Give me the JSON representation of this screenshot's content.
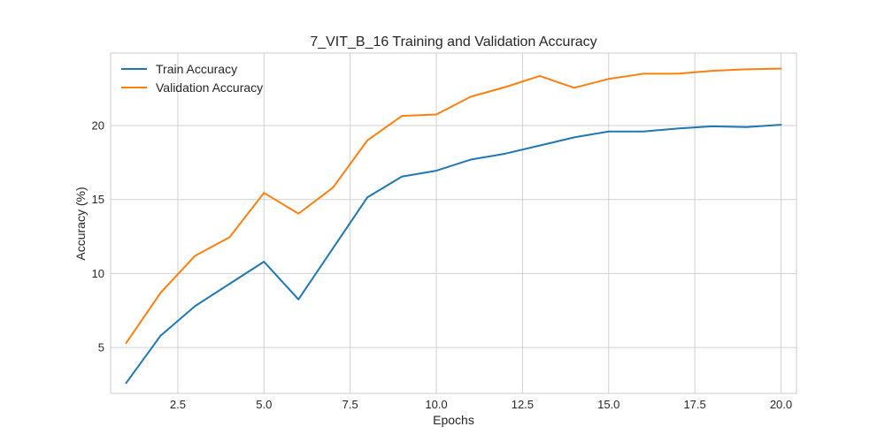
{
  "chart_data": {
    "type": "line",
    "title": "7_VIT_B_16 Training and Validation Accuracy",
    "xlabel": "Epochs",
    "ylabel": "Accuracy (%)",
    "xlim": [
      0.55,
      20.45
    ],
    "ylim": [
      1.9,
      24.9
    ],
    "xticks": [
      2.5,
      5.0,
      7.5,
      10.0,
      12.5,
      15.0,
      17.5,
      20.0
    ],
    "xtick_labels": [
      "2.5",
      "5.0",
      "7.5",
      "10.0",
      "12.5",
      "15.0",
      "17.5",
      "20.0"
    ],
    "yticks": [
      5,
      10,
      15,
      20
    ],
    "ytick_labels": [
      "5",
      "10",
      "15",
      "20"
    ],
    "grid": true,
    "legend_position": "top-left",
    "x": [
      1,
      2,
      3,
      4,
      5,
      6,
      7,
      8,
      9,
      10,
      11,
      12,
      13,
      14,
      15,
      16,
      17,
      18,
      19,
      20
    ],
    "series": [
      {
        "name": "Train Accuracy",
        "color": "#1f77b4",
        "values": [
          2.6,
          5.8,
          7.8,
          9.3,
          10.8,
          8.25,
          11.7,
          15.15,
          16.55,
          16.95,
          17.7,
          18.1,
          18.65,
          19.2,
          19.6,
          19.6,
          19.8,
          19.95,
          19.9,
          20.05
        ]
      },
      {
        "name": "Validation Accuracy",
        "color": "#ff7f0e",
        "values": [
          5.3,
          8.7,
          11.2,
          12.45,
          15.45,
          14.05,
          15.8,
          19.0,
          20.65,
          20.75,
          21.95,
          22.6,
          23.35,
          22.55,
          23.15,
          23.5,
          23.5,
          23.7,
          23.8,
          23.85
        ]
      }
    ]
  }
}
